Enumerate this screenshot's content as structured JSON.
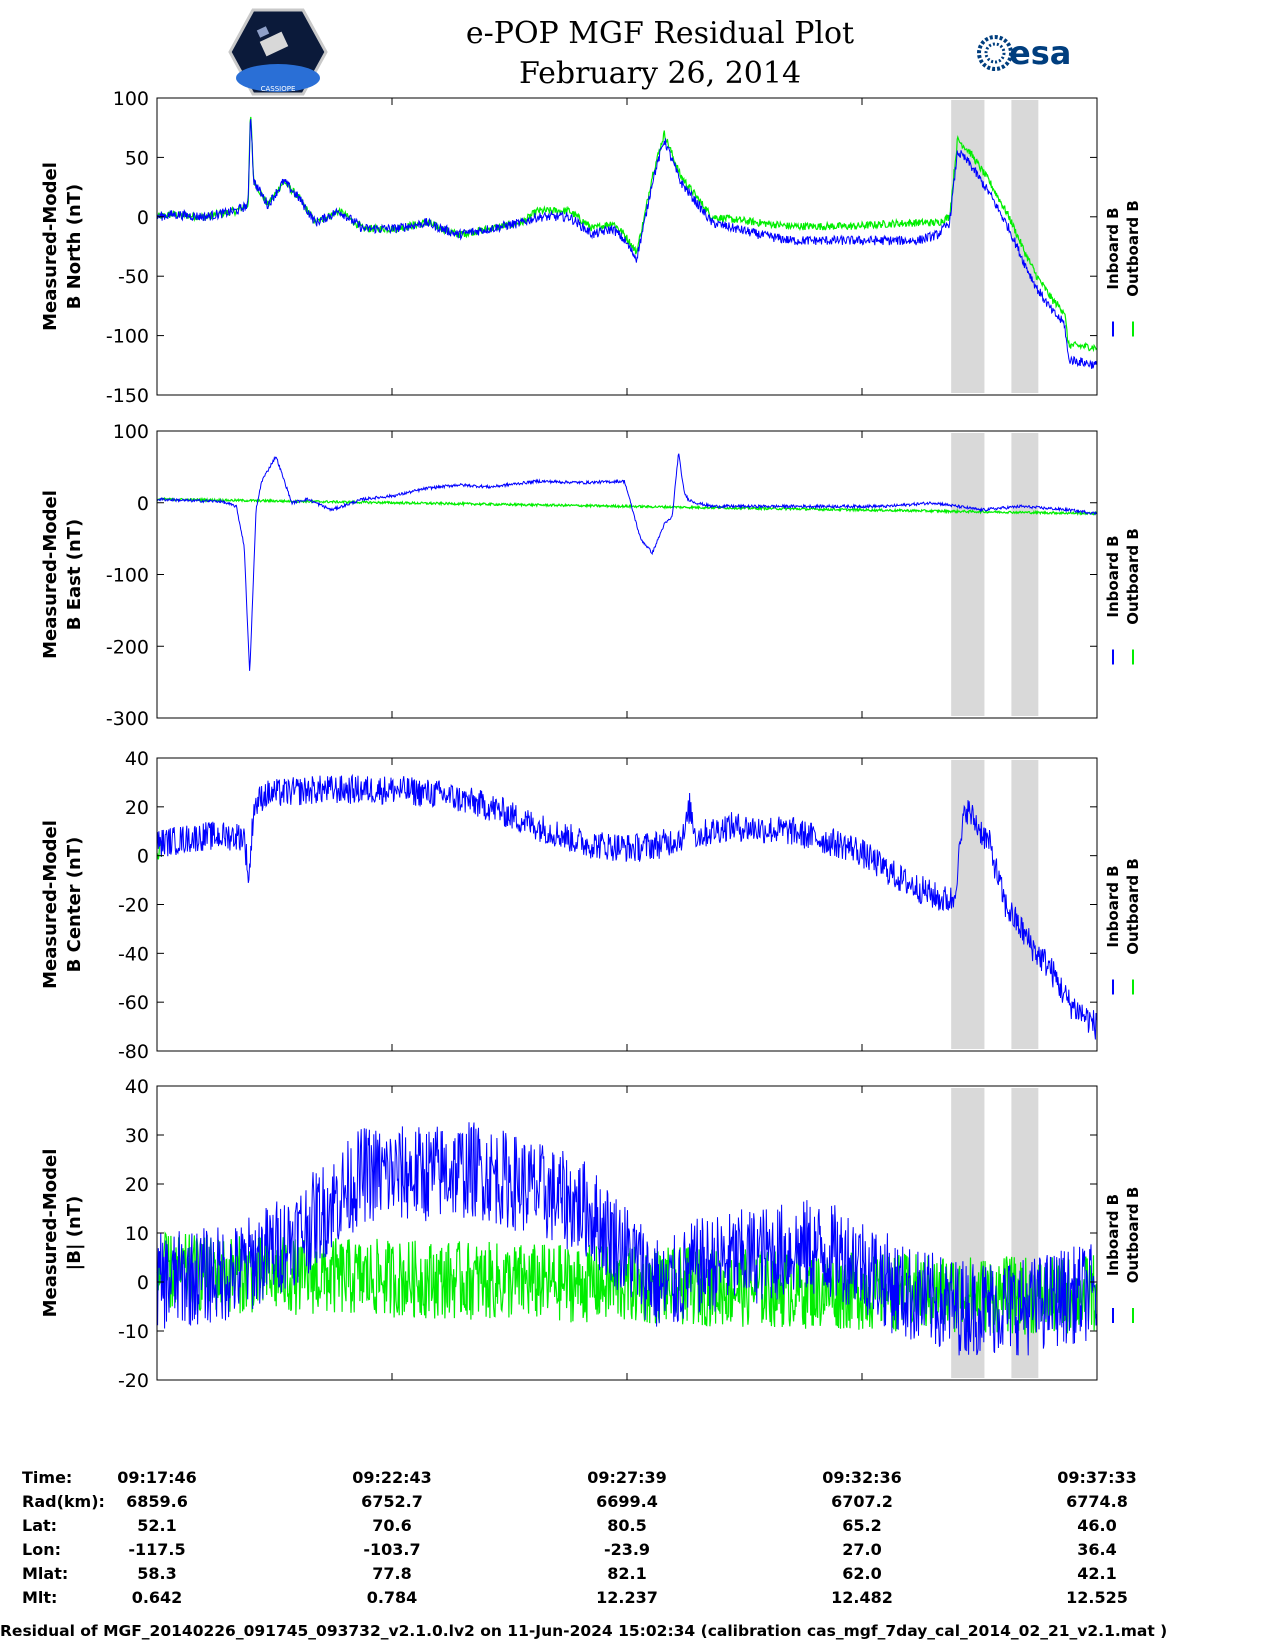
{
  "header": {
    "title_line1": "e-POP MGF Residual Plot",
    "title_line2": "February 26, 2014",
    "left_logo_text": "CASSIOPE",
    "right_logo_text": "esa"
  },
  "legend": {
    "inboard": "Inboard B",
    "outboard": "Outboard B"
  },
  "colors": {
    "inboard": "#0000ff",
    "outboard": "#00ee00",
    "shade": "#d9d9d9"
  },
  "chart_data": [
    {
      "type": "line",
      "ylabel": [
        "Measured-Model",
        "B North (nT)"
      ],
      "ylim": [
        -150,
        100
      ],
      "yticks": [
        100,
        50,
        0,
        -50,
        -100,
        -150
      ],
      "x_range_s": [
        0,
        1186
      ],
      "shaded_x_s": [
        [
          1002,
          1044
        ],
        [
          1078,
          1112
        ]
      ],
      "series": [
        {
          "name": "Inboard B",
          "x": [
            0,
            20,
            60,
            100,
            115,
            118,
            122,
            140,
            160,
            180,
            200,
            230,
            260,
            300,
            340,
            380,
            420,
            460,
            480,
            520,
            550,
            575,
            590,
            605,
            615,
            625,
            640,
            660,
            700,
            760,
            800,
            840,
            880,
            920,
            960,
            985,
            1000,
            1010,
            1025,
            1050,
            1075,
            1095,
            1110,
            1130,
            1145,
            1150,
            1186
          ],
          "y": [
            0,
            2,
            0,
            5,
            10,
            90,
            30,
            10,
            30,
            15,
            -5,
            5,
            -10,
            -10,
            -5,
            -15,
            -10,
            -5,
            0,
            0,
            -15,
            -10,
            -20,
            -35,
            -5,
            30,
            65,
            30,
            -5,
            -15,
            -20,
            -20,
            -20,
            -20,
            -20,
            -15,
            -5,
            55,
            45,
            20,
            -10,
            -40,
            -60,
            -80,
            -90,
            -120,
            -125
          ]
        },
        {
          "name": "Outboard B",
          "x": [
            0,
            20,
            60,
            100,
            115,
            118,
            122,
            140,
            160,
            180,
            200,
            230,
            260,
            300,
            340,
            380,
            420,
            460,
            480,
            520,
            550,
            575,
            590,
            605,
            615,
            625,
            640,
            660,
            700,
            760,
            800,
            840,
            880,
            920,
            960,
            985,
            1000,
            1010,
            1025,
            1050,
            1075,
            1095,
            1110,
            1130,
            1145,
            1150,
            1186
          ],
          "y": [
            0,
            2,
            0,
            5,
            10,
            90,
            30,
            10,
            30,
            15,
            -5,
            5,
            -10,
            -10,
            -5,
            -15,
            -10,
            -5,
            5,
            5,
            -10,
            -5,
            -15,
            -30,
            0,
            35,
            70,
            35,
            0,
            -5,
            -8,
            -8,
            -8,
            -6,
            -5,
            -5,
            0,
            65,
            55,
            30,
            0,
            -30,
            -50,
            -70,
            -80,
            -108,
            -110
          ]
        }
      ]
    },
    {
      "type": "line",
      "ylabel": [
        "Measured-Model",
        "B East (nT)"
      ],
      "ylim": [
        -300,
        100
      ],
      "yticks": [
        100,
        0,
        -100,
        -200,
        -300
      ],
      "x_range_s": [
        0,
        1186
      ],
      "shaded_x_s": [
        [
          1002,
          1044
        ],
        [
          1078,
          1112
        ]
      ],
      "series": [
        {
          "name": "Inboard B",
          "x": [
            0,
            40,
            80,
            100,
            110,
            117,
            125,
            132,
            150,
            170,
            190,
            220,
            260,
            300,
            340,
            380,
            420,
            480,
            540,
            590,
            610,
            625,
            640,
            650,
            658,
            665,
            670,
            680,
            700,
            740,
            800,
            860,
            920,
            980,
            1040,
            1090,
            1150,
            1186
          ],
          "y": [
            5,
            3,
            2,
            -5,
            -60,
            -240,
            -10,
            30,
            65,
            0,
            5,
            -10,
            5,
            10,
            20,
            25,
            22,
            30,
            28,
            30,
            -50,
            -70,
            -30,
            -20,
            70,
            15,
            5,
            0,
            -5,
            -5,
            -5,
            -5,
            -5,
            0,
            -10,
            -5,
            -10,
            -15
          ]
        },
        {
          "name": "Outboard B",
          "x": [
            0,
            1186
          ],
          "y": [
            5,
            -15
          ]
        }
      ]
    },
    {
      "type": "line",
      "ylabel": [
        "Measured-Model",
        "B Center (nT)"
      ],
      "ylim": [
        -80,
        40
      ],
      "yticks": [
        40,
        20,
        0,
        -20,
        -40,
        -60,
        -80
      ],
      "x_range_s": [
        0,
        1186
      ],
      "shaded_x_s": [
        [
          1002,
          1044
        ],
        [
          1078,
          1112
        ]
      ],
      "series": [
        {
          "name": "Inboard B",
          "x": [
            0,
            60,
            110,
            116,
            122,
            135,
            200,
            300,
            360,
            420,
            480,
            540,
            600,
            640,
            665,
            672,
            680,
            720,
            800,
            880,
            940,
            990,
            1005,
            1020,
            1050,
            1070,
            1090,
            1110,
            1125,
            1150,
            1186
          ],
          "y": [
            5,
            8,
            8,
            -10,
            20,
            25,
            27,
            27,
            25,
            20,
            12,
            5,
            3,
            5,
            8,
            20,
            8,
            12,
            10,
            3,
            -10,
            -18,
            -18,
            20,
            5,
            -20,
            -30,
            -40,
            -45,
            -60,
            -70
          ]
        },
        {
          "name": "Outboard B",
          "x": [
            0,
            6
          ],
          "y": [
            3,
            3
          ]
        }
      ]
    },
    {
      "type": "line",
      "ylabel": [
        "Measured-Model",
        "|B| (nT)"
      ],
      "ylim": [
        -20,
        40
      ],
      "yticks": [
        40,
        30,
        20,
        10,
        0,
        -10,
        -20
      ],
      "x_range_s": [
        0,
        1186
      ],
      "shaded_x_s": [
        [
          1002,
          1044
        ],
        [
          1078,
          1112
        ]
      ],
      "series": [
        {
          "name": "Inboard B",
          "x": [
            0,
            100,
            180,
            260,
            330,
            400,
            460,
            540,
            600,
            640,
            680,
            740,
            820,
            880,
            940,
            1000,
            1060,
            1100,
            1140,
            1186
          ],
          "y": [
            0,
            2,
            10,
            22,
            22,
            23,
            20,
            15,
            5,
            -2,
            3,
            5,
            7,
            5,
            -2,
            -5,
            -5,
            -5,
            -3,
            -2
          ]
        },
        {
          "name": "Outboard B",
          "x": [
            0,
            6,
            1140,
            1186
          ],
          "y": [
            2,
            2,
            -3,
            -2
          ]
        }
      ]
    }
  ],
  "info_table": {
    "row_labels": [
      "Time:",
      "Rad(km):",
      "Lat:",
      "Lon:",
      "Mlat:",
      "Mlt:"
    ],
    "columns": [
      {
        "time": "09:17:46",
        "rad": "6859.6",
        "lat": "52.1",
        "lon": "-117.5",
        "mlat": "58.3",
        "mlt": "0.642"
      },
      {
        "time": "09:22:43",
        "rad": "6752.7",
        "lat": "70.6",
        "lon": "-103.7",
        "mlat": "77.8",
        "mlt": "0.784"
      },
      {
        "time": "09:27:39",
        "rad": "6699.4",
        "lat": "80.5",
        "lon": "-23.9",
        "mlat": "82.1",
        "mlt": "12.237"
      },
      {
        "time": "09:32:36",
        "rad": "6707.2",
        "lat": "65.2",
        "lon": "27.0",
        "mlat": "62.0",
        "mlt": "12.482"
      },
      {
        "time": "09:37:33",
        "rad": "6774.8",
        "lat": "46.0",
        "lon": "36.4",
        "mlat": "42.1",
        "mlt": "12.525"
      }
    ]
  },
  "footer": "Residual of MGF_20140226_091745_093732_v2.1.0.lv2 on 11-Jun-2024 15:02:34 (calibration cas_mgf_7day_cal_2014_02_21_v2.1.mat )"
}
